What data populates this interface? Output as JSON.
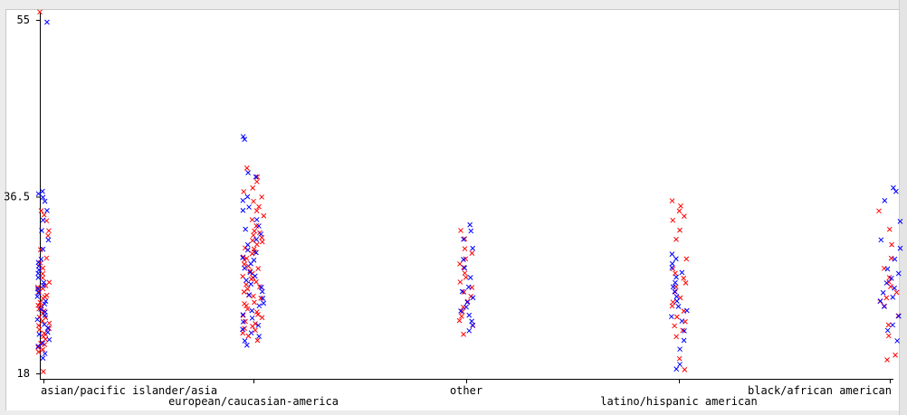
{
  "chart_data": {
    "type": "scatter",
    "title": "",
    "xlabel": "",
    "ylabel": "",
    "categories": [
      "asian/pacific islander/asia",
      "european/caucasian-america",
      "other",
      "latino/hispanic american",
      "black/african american"
    ],
    "ylim": [
      18,
      55
    ],
    "yticks": [
      "18",
      "36.5",
      "55"
    ],
    "x_jitter": true,
    "grid": false,
    "legend": "none",
    "colors": {
      "series_a": "#ff0000",
      "series_b": "#0000ff"
    },
    "marker": "x",
    "series": [
      {
        "color": "#ff0000",
        "points": {
          "asian/pacific islander/asia": [
            18.2,
            20.2,
            20.5,
            20.8,
            21,
            21.2,
            21.5,
            21.8,
            22,
            22.2,
            22.5,
            22.8,
            23,
            23.2,
            23.5,
            23.8,
            24,
            24.2,
            24.5,
            24.8,
            25,
            25.2,
            25.5,
            25.8,
            26,
            26.2,
            26.5,
            26.8,
            27,
            27.2,
            27.5,
            28,
            28.5,
            29,
            29.5,
            30,
            31,
            32.5,
            33,
            34,
            34.5,
            35,
            55.8
          ],
          "european/caucasian-america": [
            21.5,
            22,
            22.2,
            22.5,
            22.8,
            23,
            23.2,
            23.5,
            23.8,
            24,
            24.2,
            24.5,
            24.8,
            25,
            25.2,
            25.5,
            25.8,
            26,
            26.2,
            26.5,
            26.8,
            27,
            27.2,
            27.5,
            27.8,
            28,
            28.2,
            28.5,
            28.8,
            29,
            29.2,
            29.5,
            29.8,
            30,
            30.2,
            30.5,
            30.8,
            31,
            31.2,
            31.5,
            31.8,
            32,
            32.2,
            32.5,
            32.8,
            33,
            33.5,
            34,
            34.5,
            35,
            35.5,
            36,
            36.5,
            37,
            37.5,
            38,
            38.5,
            39.5
          ],
          "other": [
            22,
            23,
            23.5,
            24,
            24.5,
            25,
            25.5,
            26,
            26.5,
            27,
            27.5,
            28,
            28.5,
            29,
            29.5,
            30,
            30.5,
            31,
            32,
            33
          ],
          "latino/hispanic american": [
            18.3,
            19.5,
            21.8,
            22.5,
            23,
            23.5,
            24,
            24.5,
            25,
            25.5,
            26,
            26.5,
            27,
            27.5,
            28,
            28.5,
            29,
            30,
            32,
            33,
            34,
            34.5,
            35,
            35.5,
            36
          ],
          "black/african american": [
            19.5,
            20,
            22,
            23,
            24,
            25,
            25.5,
            26,
            26.5,
            27,
            27.5,
            28,
            29,
            30,
            31.5,
            33,
            35
          ]
        }
      },
      {
        "color": "#0000ff",
        "points": {
          "asian/pacific islander/asia": [
            19.5,
            20,
            20.8,
            21.2,
            21.6,
            22,
            22.4,
            22.8,
            23.2,
            23.6,
            24,
            24.4,
            24.8,
            25.2,
            25.6,
            26,
            26.4,
            26.8,
            27.2,
            27.6,
            28,
            28.4,
            28.8,
            29.2,
            29.6,
            30,
            31,
            32,
            33,
            34,
            35,
            36,
            36.5,
            36.8,
            37,
            54.8
          ],
          "european/caucasian-america": [
            21,
            21.4,
            21.8,
            22.2,
            22.6,
            23,
            23.4,
            23.8,
            24.2,
            24.6,
            25,
            25.4,
            25.8,
            26.2,
            26.6,
            27,
            27.4,
            27.8,
            28.2,
            28.6,
            29,
            29.4,
            29.8,
            30.2,
            30.6,
            31,
            31.5,
            32,
            32.5,
            33,
            33.5,
            34,
            35,
            35.5,
            36,
            36.5,
            38.5,
            39,
            42.5,
            42.8
          ],
          "other": [
            22.5,
            23,
            23.5,
            24,
            24.5,
            25,
            25.5,
            26,
            26.5,
            27,
            28,
            29,
            30,
            31,
            32,
            33,
            33.5
          ],
          "latino/hispanic american": [
            18.5,
            19,
            20.5,
            21.5,
            22.5,
            23.5,
            24,
            24.5,
            25,
            25.5,
            26,
            26.5,
            27,
            27.5,
            28,
            28.5,
            29,
            29.5,
            30,
            30.5
          ],
          "black/african american": [
            21.5,
            22.5,
            23,
            24,
            25,
            25.5,
            26,
            26.5,
            27,
            27.5,
            28,
            28.5,
            29,
            30,
            31,
            32,
            34,
            36,
            37,
            37.5
          ]
        }
      }
    ]
  }
}
